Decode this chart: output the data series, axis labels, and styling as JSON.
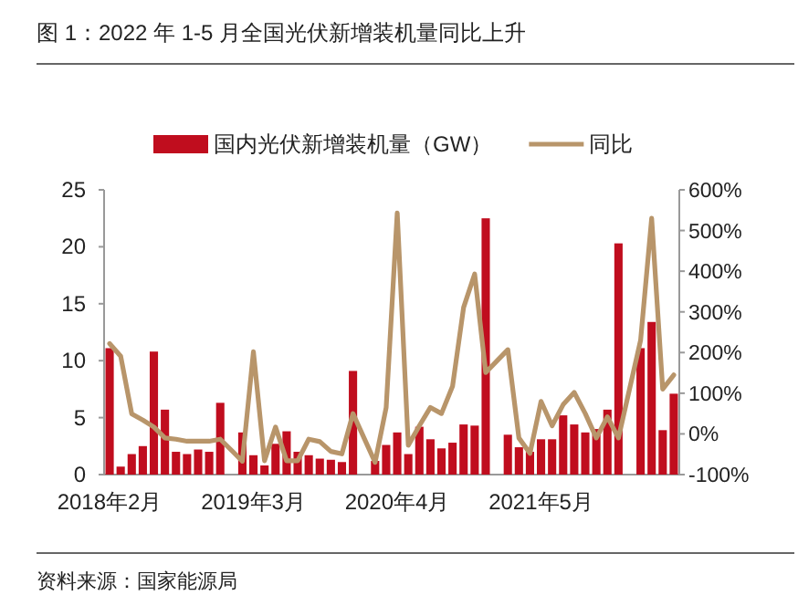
{
  "chart_data": {
    "type": "bar",
    "title": "图 1：2022 年 1-5 月全国光伏新增装机量同比上升",
    "categories": [
      "2018年2月",
      null,
      null,
      null,
      null,
      null,
      null,
      null,
      null,
      null,
      null,
      null,
      null,
      "2019年3月",
      null,
      null,
      null,
      null,
      null,
      null,
      null,
      null,
      null,
      null,
      null,
      null,
      "2020年4月",
      null,
      null,
      null,
      null,
      null,
      null,
      null,
      null,
      null,
      null,
      null,
      null,
      "2021年5月",
      null,
      null,
      null,
      null,
      null,
      null,
      null,
      null,
      null,
      null,
      null,
      null
    ],
    "series": [
      {
        "name": "国内光伏新增装机量（GW）",
        "color": "#c00d1e",
        "values": [
          11.1,
          0.7,
          1.8,
          2.5,
          10.8,
          5.7,
          2.0,
          1.8,
          2.2,
          2.0,
          6.3,
          null,
          3.7,
          1.7,
          0.8,
          2.7,
          3.8,
          2.0,
          1.7,
          1.4,
          1.3,
          1.1,
          9.1,
          null,
          1.2,
          2.6,
          3.7,
          1.8,
          4.2,
          3.1,
          2.3,
          2.8,
          4.4,
          4.3,
          22.5,
          null,
          3.5,
          2.4,
          2.0,
          3.1,
          3.1,
          5.2,
          4.4,
          3.7,
          4.0,
          5.7,
          20.3,
          null,
          11.1,
          13.4,
          3.9,
          7.1
        ]
      },
      {
        "name": "同比",
        "type": "line",
        "axis": "y2",
        "color": "#b8956a",
        "values": [
          222,
          191,
          49,
          34,
          17,
          -10,
          -13,
          -18,
          -18,
          -18,
          -13,
          null,
          -67,
          202,
          -66,
          17,
          -66,
          -66,
          -13,
          -19,
          -43,
          -49,
          50,
          null,
          -70,
          65,
          543,
          -28,
          20,
          65,
          50,
          117,
          311,
          393,
          151,
          null,
          207,
          -10,
          -48,
          80,
          20,
          72,
          102,
          50,
          -10,
          42,
          -10,
          null,
          230,
          530,
          110,
          145
        ]
      }
    ],
    "ylim": [
      0,
      25
    ],
    "yticks": [
      0,
      5,
      10,
      15,
      20,
      25
    ],
    "y2lim": [
      -100,
      600
    ],
    "y2ticks": [
      {
        "value": -100,
        "label": "-100%"
      },
      {
        "value": 0,
        "label": "0%"
      },
      {
        "value": 100,
        "label": "100%"
      },
      {
        "value": 200,
        "label": "200%"
      },
      {
        "value": 300,
        "label": "300%"
      },
      {
        "value": 400,
        "label": "400%"
      },
      {
        "value": 500,
        "label": "500%"
      },
      {
        "value": 600,
        "label": "600%"
      }
    ],
    "legend": "top",
    "grid": false,
    "annotations": [
      "资料来源：国家能源局"
    ]
  }
}
